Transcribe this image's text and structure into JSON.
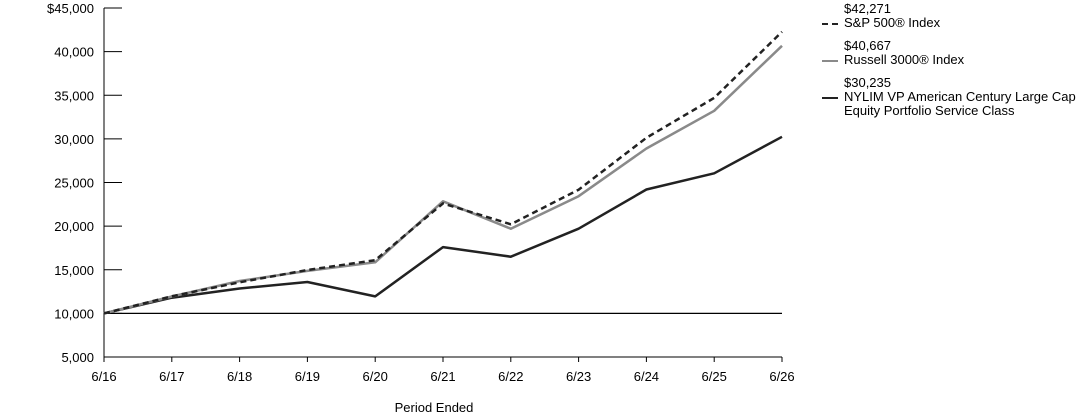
{
  "chart_data": {
    "type": "line",
    "x": [
      "6/16",
      "6/17",
      "6/18",
      "6/19",
      "6/20",
      "6/21",
      "6/22",
      "6/23",
      "6/24",
      "6/25",
      "6/26"
    ],
    "xlabel": "Period Ended",
    "ylabel": "",
    "ylim": [
      5000,
      45000
    ],
    "yticks": [
      "$45,000",
      "40,000",
      "35,000",
      "30,000",
      "25,000",
      "20,000",
      "15,000",
      "10,000",
      "5,000"
    ],
    "ytick_values": [
      45000,
      40000,
      35000,
      30000,
      25000,
      20000,
      15000,
      10000,
      5000
    ],
    "reference_line": 10000,
    "legend_position": "top-right",
    "series": [
      {
        "name": "S&P 500® Index",
        "end_label": "$42,271",
        "style": "dashed",
        "color": "#222222",
        "values": [
          10000,
          11960,
          13560,
          14970,
          16090,
          22600,
          20210,
          24180,
          30120,
          34700,
          42271
        ]
      },
      {
        "name": "Russell 3000® Index",
        "end_label": "$40,667",
        "style": "solid",
        "color": "#8a8a8a",
        "values": [
          10000,
          11930,
          13710,
          14870,
          15850,
          22850,
          19700,
          23430,
          28900,
          33220,
          40667
        ]
      },
      {
        "name": "NYLIM VP American Century Large Cap Equity Portfolio Service Class",
        "end_label": "$30,235",
        "style": "solid",
        "color": "#222222",
        "values": [
          10000,
          11800,
          12850,
          13600,
          11950,
          17600,
          16500,
          19700,
          24200,
          26050,
          30235
        ]
      }
    ]
  }
}
